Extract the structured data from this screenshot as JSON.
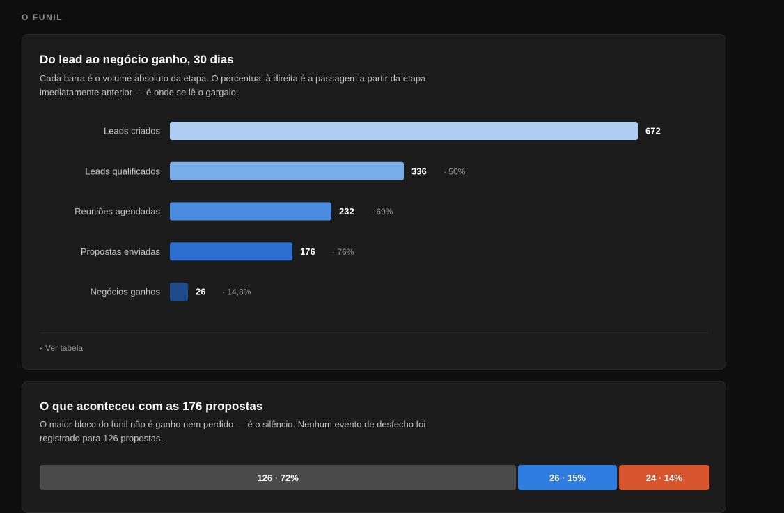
{
  "section_label": "O FUNIL",
  "funnel_card": {
    "title": "Do lead ao negócio ganho, 30 dias",
    "description": "Cada barra é o volume absoluto da etapa. O percentual à direita é a passagem a partir da etapa imediatamente anterior — é onde se lê o gargalo.",
    "toggle_label": "Ver tabela"
  },
  "outcome_card": {
    "title": "O que aconteceu com as 176 propostas",
    "description": "O maior bloco do funil não é ganho nem perdido — é o silêncio. Nenhum evento de desfecho foi registrado para 126 propostas.",
    "segments": [
      {
        "label": "126 · 72%",
        "value": 126,
        "color": "#4a4a4a"
      },
      {
        "label": "26 · 15%",
        "value": 26,
        "color": "#2f7de0"
      },
      {
        "label": "24 · 14%",
        "value": 24,
        "color": "#d9552e"
      }
    ]
  },
  "chart_data": {
    "type": "bar",
    "orientation": "horizontal",
    "categories": [
      "Leads criados",
      "Leads qualificados",
      "Reuniões agendadas",
      "Propostas enviadas",
      "Negócios ganhos"
    ],
    "values": [
      672,
      336,
      232,
      176,
      26
    ],
    "value_labels": [
      "672",
      "336",
      "232",
      "176",
      "26"
    ],
    "conversion_labels": [
      "",
      "· 50%",
      "· 69%",
      "· 76%",
      "· 14,8%"
    ],
    "colors": [
      "#aecdf3",
      "#7aaeea",
      "#4a8be0",
      "#2d6fd0",
      "#1f4a8c"
    ],
    "xlim": [
      0,
      672
    ]
  }
}
